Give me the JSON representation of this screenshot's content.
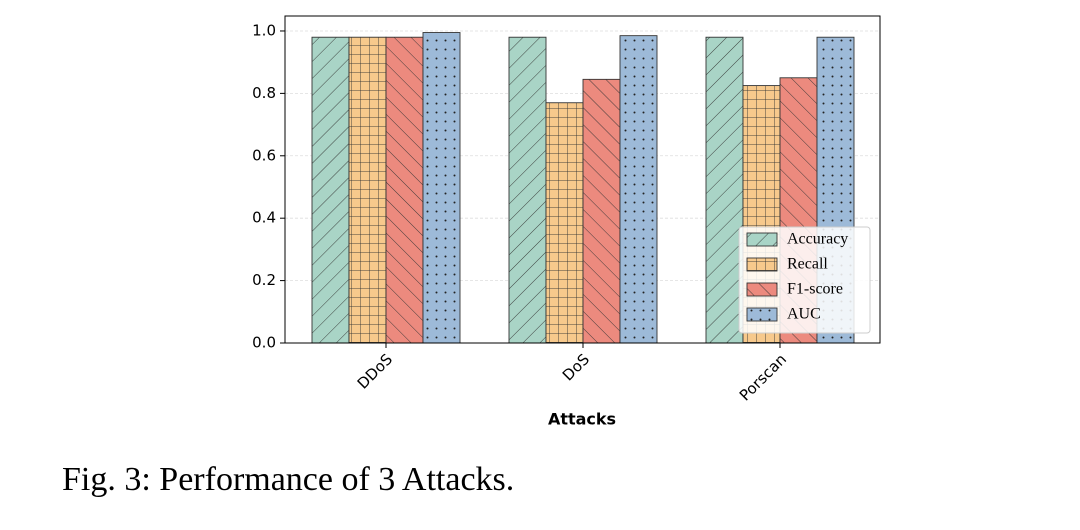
{
  "chart_data": {
    "type": "bar",
    "xlabel": "Attacks",
    "categories": [
      "DDoS",
      "DoS",
      "Porscan"
    ],
    "series": [
      {
        "name": "Accuracy",
        "color": "#a9d4c6",
        "hatch": "/",
        "values": [
          0.98,
          0.98,
          0.98
        ]
      },
      {
        "name": "Recall",
        "color": "#f7c98c",
        "hatch": "+",
        "values": [
          0.98,
          0.77,
          0.825
        ]
      },
      {
        "name": "F1-score",
        "color": "#ec8a7e",
        "hatch": "\\",
        "values": [
          0.98,
          0.845,
          0.85
        ]
      },
      {
        "name": "AUC",
        "color": "#9dbad8",
        "hatch": ".",
        "values": [
          0.995,
          0.985,
          0.98
        ]
      }
    ],
    "ylim": [
      0,
      1.048
    ],
    "yticks": [
      {
        "value": 0,
        "label": "0.0"
      },
      0.2,
      0.4,
      0.6,
      0.8,
      {
        "value": 1,
        "label": "1.0"
      }
    ],
    "grid": true,
    "legend": "lower right"
  },
  "caption": "Fig. 3: Performance of 3 Attacks."
}
